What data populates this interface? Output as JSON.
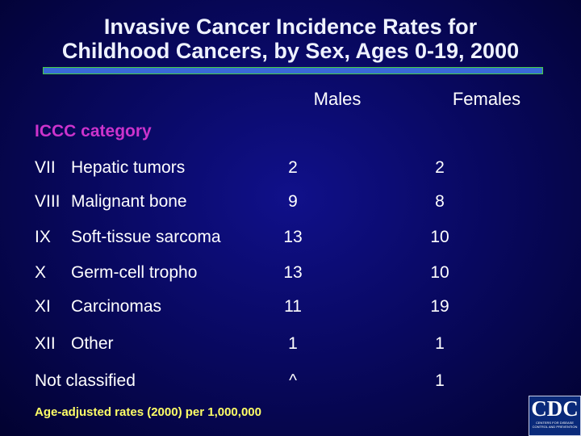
{
  "header": {
    "title_lines": [
      "Invasive Cancer Incidence Rates for",
      "Childhood Cancers, by Sex, Ages 0-19, 2000"
    ]
  },
  "table": {
    "columns": [
      "Males",
      "Females"
    ],
    "category_label": "ICCC category",
    "rows": [
      {
        "code": "VII",
        "name": "Hepatic tumors",
        "males": 2,
        "females": 2
      },
      {
        "code": "VIII",
        "name": "Malignant bone",
        "males": 9,
        "females": 8
      },
      {
        "code": "IX",
        "name": "Soft-tissue sarcoma",
        "males": 13,
        "females": 10
      },
      {
        "code": "X",
        "name": "Germ-cell tropho",
        "males": 13,
        "females": 10
      },
      {
        "code": "XI",
        "name": "Carcinomas",
        "males": 11,
        "females": 19
      },
      {
        "code": "XII",
        "name": "Other",
        "males": 1,
        "females": 1
      },
      {
        "name": "Not classified",
        "males": "^",
        "females": 1
      }
    ]
  },
  "footnote": "Age-adjusted rates (2000) per 1,000,000",
  "logo": {
    "text": "CDC",
    "subtext": "CENTERS FOR DISEASE CONTROL AND PREVENTION"
  }
}
